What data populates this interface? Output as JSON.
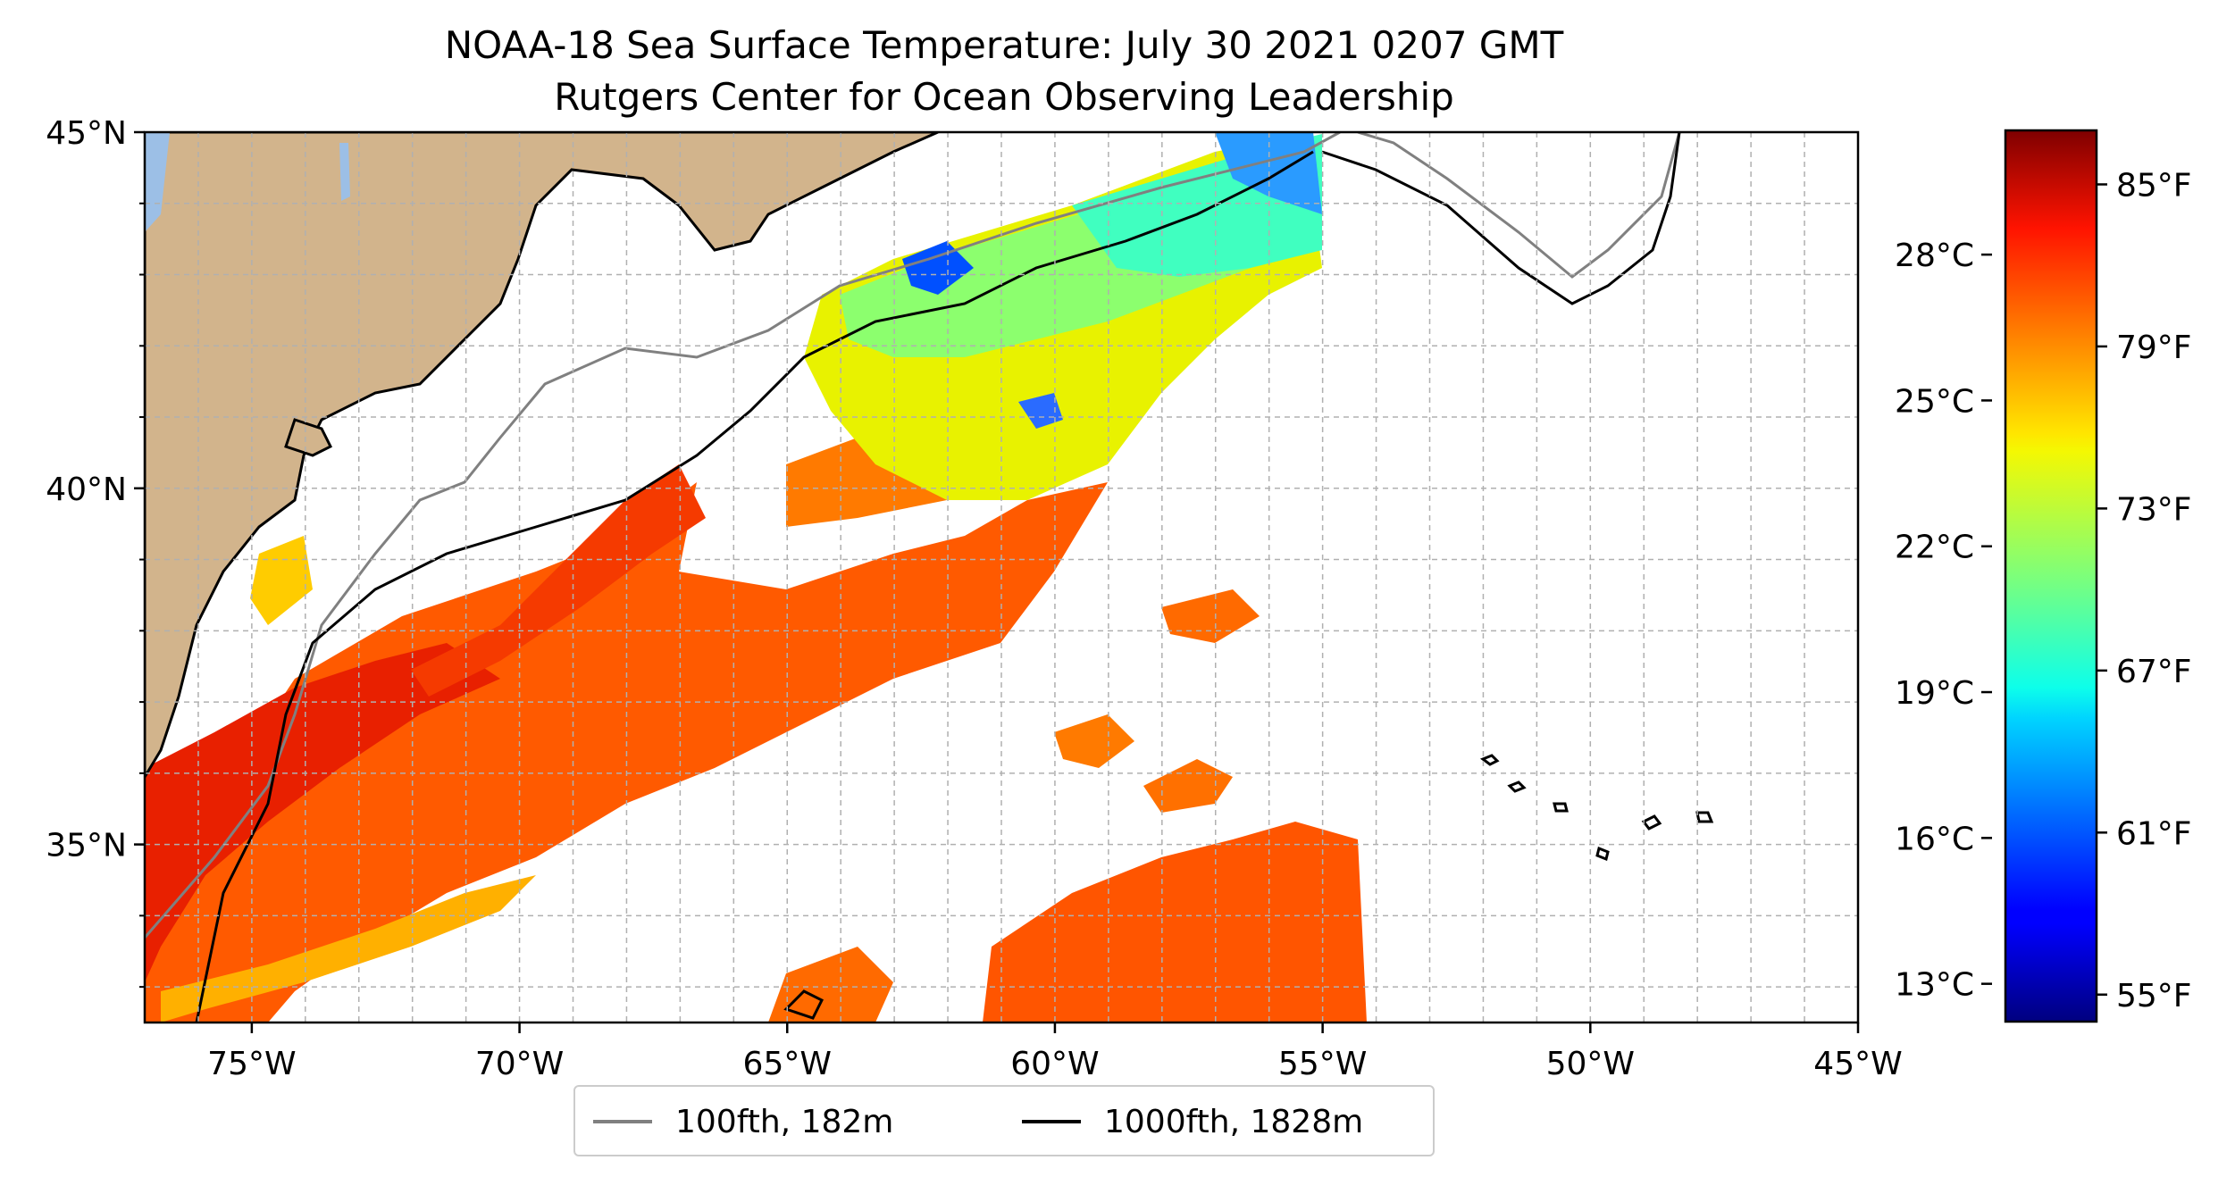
{
  "title": "NOAA-18 Sea Surface Temperature: July 30 2021 0207 GMT",
  "subtitle": "Rutgers Center for Ocean Observing Leadership",
  "map": {
    "lon_range": [
      -77,
      -45
    ],
    "lat_range": [
      32.5,
      45
    ],
    "x_ticks": [
      "75°W",
      "70°W",
      "65°W",
      "60°W",
      "55°W",
      "50°W",
      "45°W"
    ],
    "x_tick_values": [
      -75,
      -70,
      -65,
      -60,
      -55,
      -50,
      -45
    ],
    "y_ticks": [
      "45°N",
      "40°N",
      "35°N"
    ],
    "y_tick_values": [
      45,
      40,
      35
    ],
    "gridlines": true,
    "land_color": "#d2b48c",
    "water_color": "#9cbfe6"
  },
  "legend": {
    "placement": "bottom-center",
    "items": [
      {
        "label": "100fth, 182m",
        "color": "#808080"
      },
      {
        "label": "1000fth, 1828m",
        "color": "#000000"
      }
    ]
  },
  "colorbar": {
    "colormap": "jet",
    "fahrenheit_range": [
      54,
      87
    ],
    "celsius_labels": [
      "28°C",
      "25°C",
      "22°C",
      "19°C",
      "16°C",
      "13°C"
    ],
    "celsius_values": [
      28,
      25,
      22,
      19,
      16,
      13
    ],
    "fahrenheit_labels": [
      "85°F",
      "79°F",
      "73°F",
      "67°F",
      "61°F",
      "55°F"
    ],
    "fahrenheit_values": [
      85,
      79,
      73,
      67,
      61,
      55
    ]
  }
}
